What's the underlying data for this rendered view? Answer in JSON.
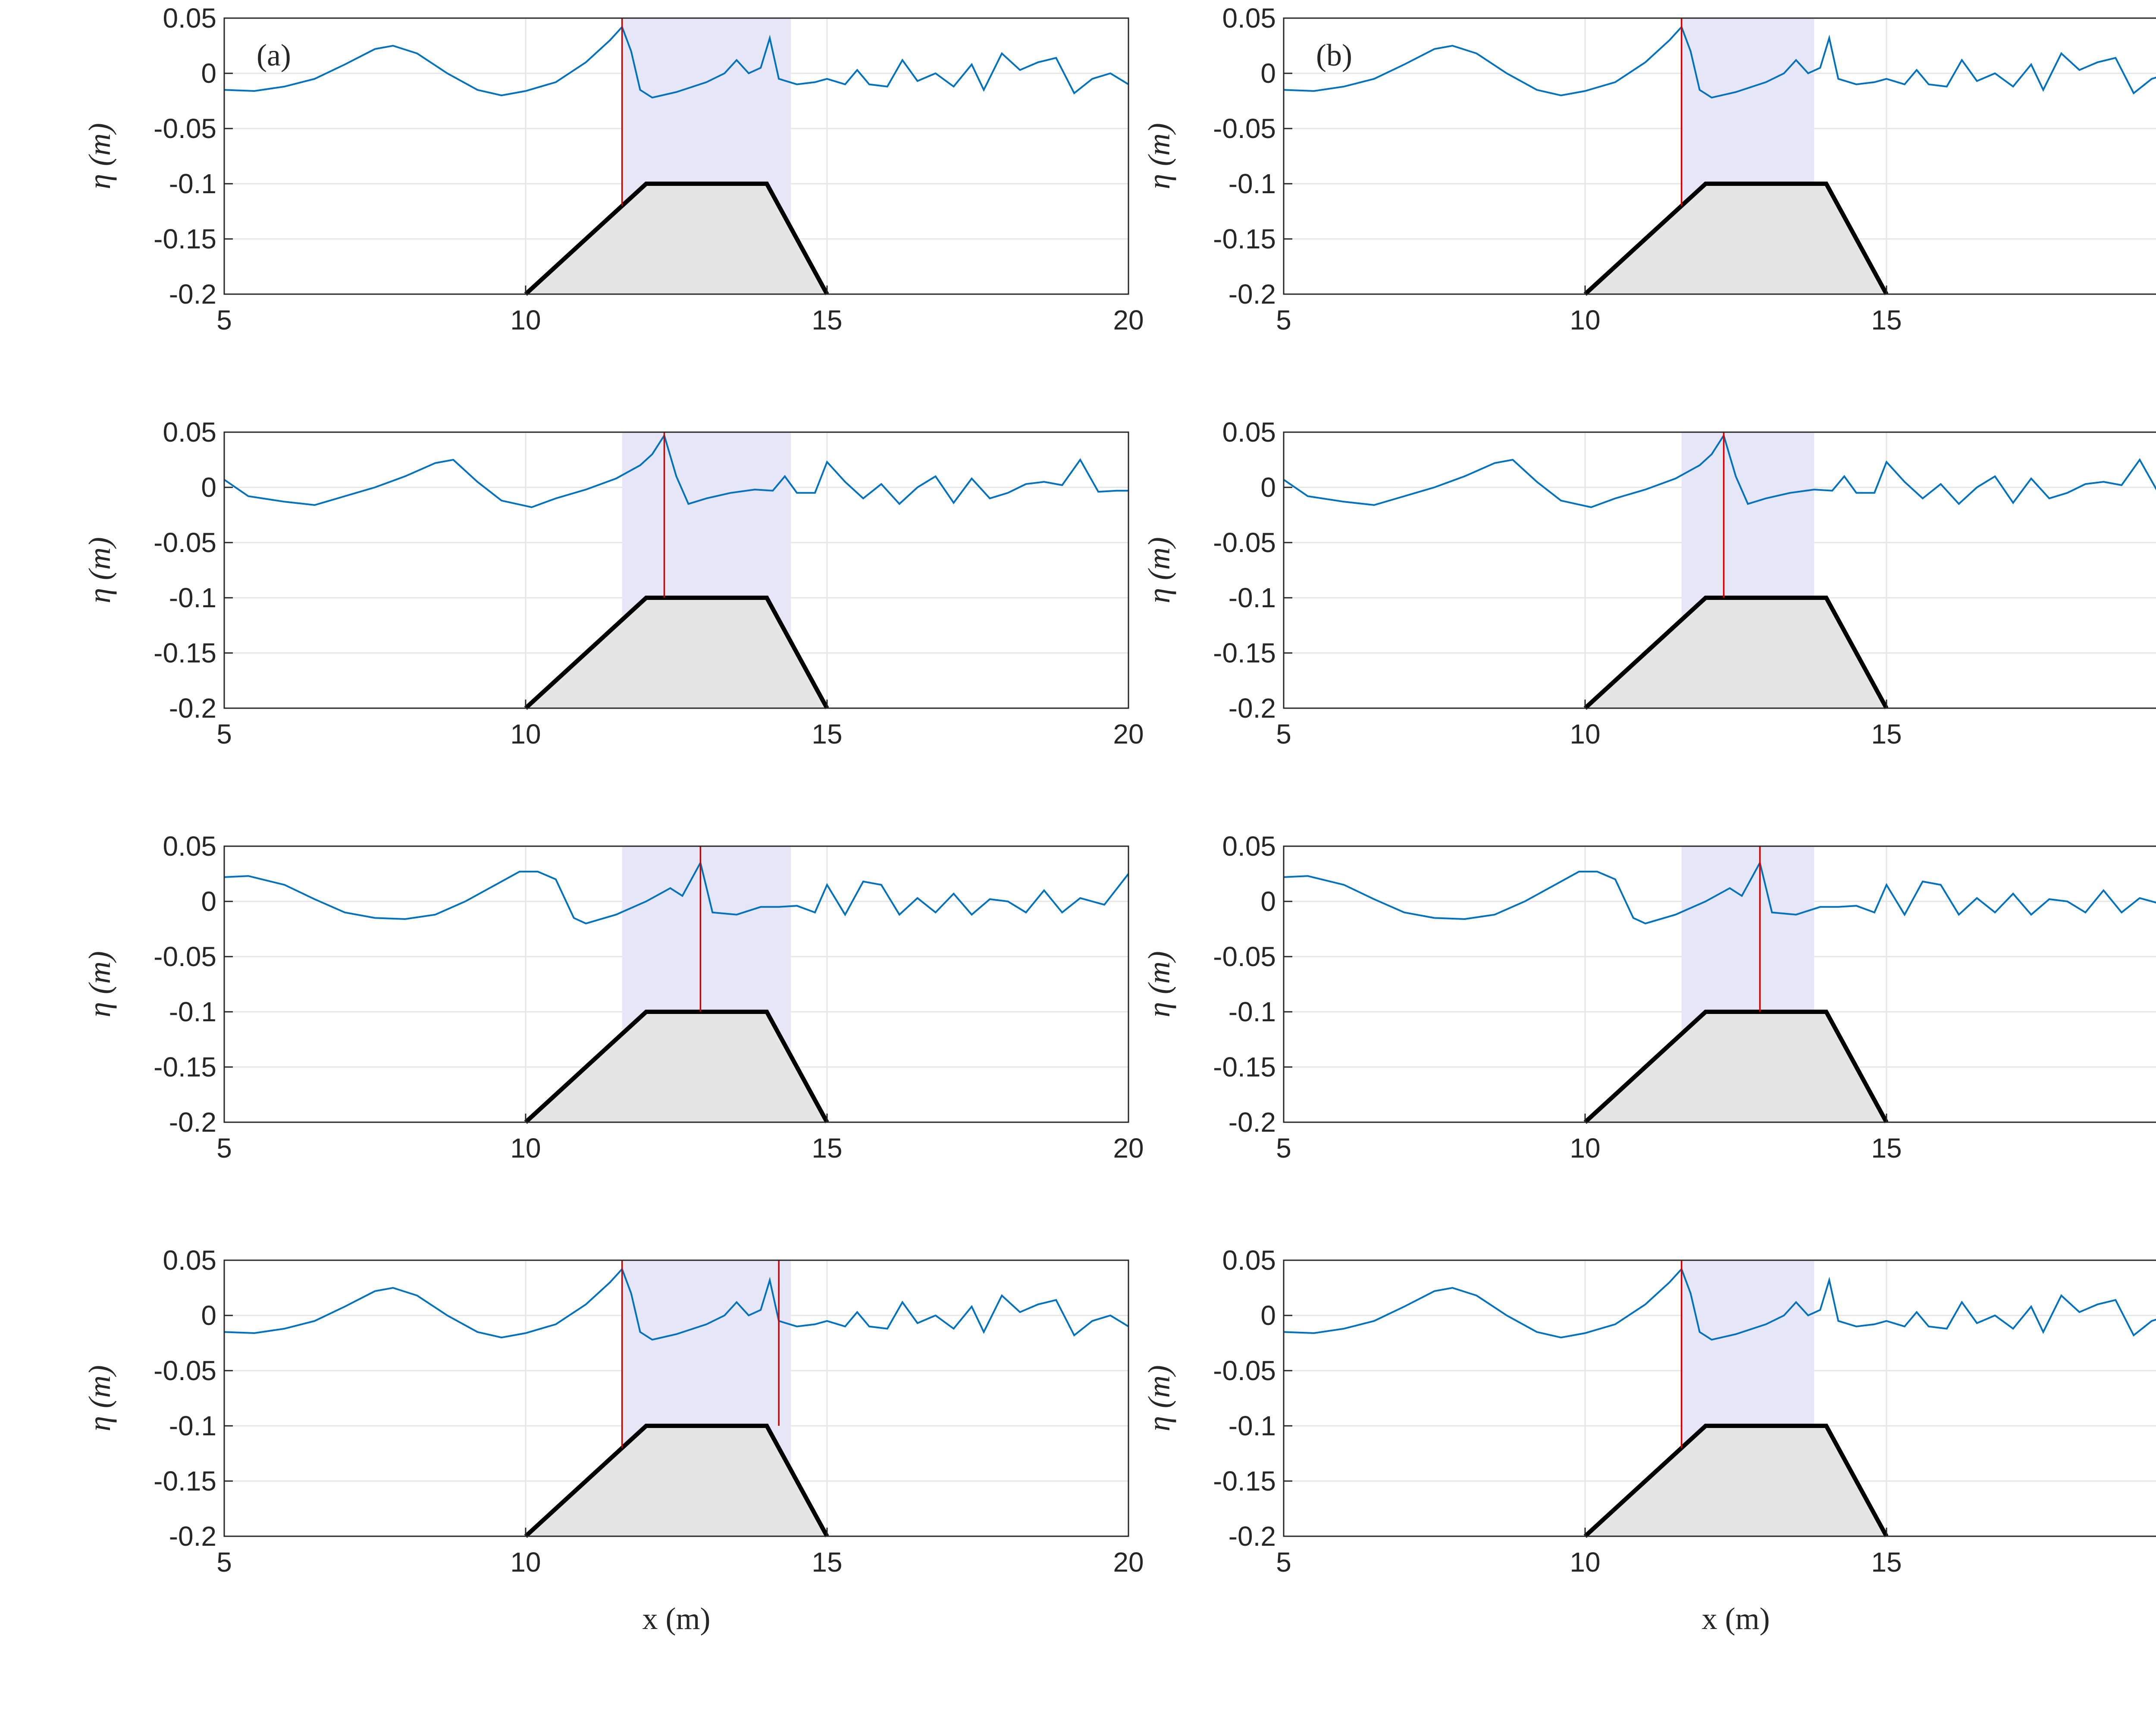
{
  "chart_data": {
    "type": "line",
    "layout": "4 rows x 2 columns",
    "xlim": [
      5,
      20
    ],
    "ylim": [
      -0.2,
      0.05
    ],
    "xticks": [
      "5",
      "10",
      "15",
      "20"
    ],
    "yticks": [
      "0.05",
      "0",
      "-0.05",
      "-0.1",
      "-0.15",
      "-0.2"
    ],
    "ytick_values": [
      0.05,
      0,
      -0.05,
      -0.1,
      -0.15,
      -0.2
    ],
    "xtick_values": [
      5,
      10,
      15,
      20
    ],
    "ylabel": "η (m)",
    "xlabel": "x (m)",
    "column_labels": [
      "(a)",
      "(b)"
    ],
    "bar": {
      "x": [
        10,
        12,
        14,
        15
      ],
      "y": [
        -0.2,
        -0.1,
        -0.1,
        -0.2
      ]
    },
    "colors": {
      "line": "#0072bd",
      "marker": "#d00000",
      "zone": "#e6e6f7",
      "bar_fill": "#e5e5e5",
      "bar_edge": "#000000"
    },
    "profiles": {
      "A": [
        [
          5,
          -0.015
        ],
        [
          5.5,
          -0.016
        ],
        [
          6,
          -0.012
        ],
        [
          6.5,
          -0.005
        ],
        [
          7,
          0.008
        ],
        [
          7.5,
          0.022
        ],
        [
          7.8,
          0.025
        ],
        [
          8.2,
          0.018
        ],
        [
          8.7,
          0
        ],
        [
          9.2,
          -0.015
        ],
        [
          9.6,
          -0.02
        ],
        [
          10,
          -0.016
        ],
        [
          10.5,
          -0.008
        ],
        [
          11,
          0.01
        ],
        [
          11.4,
          0.03
        ],
        [
          11.6,
          0.042
        ],
        [
          11.75,
          0.02
        ],
        [
          11.9,
          -0.015
        ],
        [
          12.1,
          -0.022
        ],
        [
          12.5,
          -0.017
        ],
        [
          13,
          -0.008
        ],
        [
          13.3,
          0
        ],
        [
          13.5,
          0.012
        ],
        [
          13.7,
          0
        ],
        [
          13.9,
          0.005
        ],
        [
          14.05,
          0.032
        ],
        [
          14.2,
          -0.005
        ],
        [
          14.5,
          -0.01
        ],
        [
          14.8,
          -0.008
        ],
        [
          15,
          -0.005
        ],
        [
          15.3,
          -0.01
        ],
        [
          15.5,
          0.003
        ],
        [
          15.7,
          -0.01
        ],
        [
          16,
          -0.012
        ],
        [
          16.25,
          0.012
        ],
        [
          16.5,
          -0.007
        ],
        [
          16.8,
          0
        ],
        [
          17.1,
          -0.012
        ],
        [
          17.4,
          0.008
        ],
        [
          17.6,
          -0.015
        ],
        [
          17.9,
          0.018
        ],
        [
          18.2,
          0.003
        ],
        [
          18.5,
          0.01
        ],
        [
          18.8,
          0.014
        ],
        [
          19.1,
          -0.018
        ],
        [
          19.4,
          -0.005
        ],
        [
          19.7,
          0
        ],
        [
          20,
          -0.01
        ]
      ],
      "B": [
        [
          5,
          0.007
        ],
        [
          5.4,
          -0.008
        ],
        [
          6,
          -0.013
        ],
        [
          6.5,
          -0.016
        ],
        [
          7,
          -0.008
        ],
        [
          7.5,
          0
        ],
        [
          8,
          0.01
        ],
        [
          8.5,
          0.022
        ],
        [
          8.8,
          0.025
        ],
        [
          9.2,
          0.005
        ],
        [
          9.6,
          -0.012
        ],
        [
          10.1,
          -0.018
        ],
        [
          10.5,
          -0.01
        ],
        [
          11,
          -0.002
        ],
        [
          11.5,
          0.008
        ],
        [
          11.9,
          0.02
        ],
        [
          12.1,
          0.03
        ],
        [
          12.3,
          0.047
        ],
        [
          12.5,
          0.01
        ],
        [
          12.7,
          -0.015
        ],
        [
          13,
          -0.01
        ],
        [
          13.4,
          -0.005
        ],
        [
          13.8,
          -0.002
        ],
        [
          14.1,
          -0.003
        ],
        [
          14.3,
          0.01
        ],
        [
          14.5,
          -0.005
        ],
        [
          14.8,
          -0.005
        ],
        [
          15,
          0.023
        ],
        [
          15.3,
          0.005
        ],
        [
          15.6,
          -0.01
        ],
        [
          15.9,
          0.003
        ],
        [
          16.2,
          -0.015
        ],
        [
          16.5,
          0
        ],
        [
          16.8,
          0.01
        ],
        [
          17.1,
          -0.014
        ],
        [
          17.4,
          0.008
        ],
        [
          17.7,
          -0.01
        ],
        [
          18,
          -0.005
        ],
        [
          18.3,
          0.003
        ],
        [
          18.6,
          0.005
        ],
        [
          18.9,
          0.002
        ],
        [
          19.2,
          0.025
        ],
        [
          19.5,
          -0.004
        ],
        [
          19.8,
          -0.003
        ],
        [
          20,
          -0.003
        ]
      ],
      "C": [
        [
          5,
          0.022
        ],
        [
          5.4,
          0.023
        ],
        [
          6,
          0.015
        ],
        [
          6.5,
          0.002
        ],
        [
          7,
          -0.01
        ],
        [
          7.5,
          -0.015
        ],
        [
          8,
          -0.016
        ],
        [
          8.5,
          -0.012
        ],
        [
          9,
          0
        ],
        [
          9.5,
          0.015
        ],
        [
          9.9,
          0.027
        ],
        [
          10.2,
          0.027
        ],
        [
          10.5,
          0.02
        ],
        [
          10.8,
          -0.015
        ],
        [
          11,
          -0.02
        ],
        [
          11.5,
          -0.012
        ],
        [
          12,
          0
        ],
        [
          12.4,
          0.012
        ],
        [
          12.6,
          0.005
        ],
        [
          12.9,
          0.035
        ],
        [
          13.1,
          -0.01
        ],
        [
          13.5,
          -0.012
        ],
        [
          13.9,
          -0.005
        ],
        [
          14.2,
          -0.005
        ],
        [
          14.5,
          -0.004
        ],
        [
          14.8,
          -0.01
        ],
        [
          15,
          0.015
        ],
        [
          15.3,
          -0.012
        ],
        [
          15.6,
          0.018
        ],
        [
          15.9,
          0.015
        ],
        [
          16.2,
          -0.012
        ],
        [
          16.5,
          0.003
        ],
        [
          16.8,
          -0.01
        ],
        [
          17.1,
          0.007
        ],
        [
          17.4,
          -0.012
        ],
        [
          17.7,
          0.002
        ],
        [
          18,
          0
        ],
        [
          18.3,
          -0.01
        ],
        [
          18.6,
          0.01
        ],
        [
          18.9,
          -0.01
        ],
        [
          19.2,
          0.003
        ],
        [
          19.6,
          -0.003
        ],
        [
          20,
          0.025
        ]
      ]
    },
    "panels": [
      {
        "id": "a1",
        "profile": "A",
        "zone": [
          11.6,
          14.4
        ],
        "markers": [
          11.6
        ]
      },
      {
        "id": "b1",
        "profile": "A",
        "zone": [
          11.6,
          13.8
        ],
        "markers": [
          11.6
        ]
      },
      {
        "id": "a2",
        "profile": "B",
        "zone": [
          11.6,
          14.4
        ],
        "markers": [
          12.3
        ]
      },
      {
        "id": "b2",
        "profile": "B",
        "zone": [
          11.6,
          13.8
        ],
        "markers": [
          12.3
        ]
      },
      {
        "id": "a3",
        "profile": "C",
        "zone": [
          11.6,
          14.4
        ],
        "markers": [
          12.9
        ]
      },
      {
        "id": "b3",
        "profile": "C",
        "zone": [
          11.6,
          13.8
        ],
        "markers": [
          12.9
        ]
      },
      {
        "id": "a4",
        "profile": "A",
        "zone": [
          11.6,
          14.4
        ],
        "markers": [
          11.6,
          14.2
        ]
      },
      {
        "id": "b4",
        "profile": "A",
        "zone": [
          11.6,
          13.8
        ],
        "markers": [
          11.6
        ]
      }
    ]
  }
}
